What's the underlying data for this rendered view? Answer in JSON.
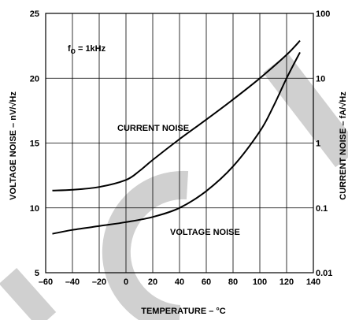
{
  "chart_data": {
    "type": "line",
    "xlabel": "TEMPERATURE – °C",
    "ylabel_left": "VOLTAGE NOISE – nV/√Hz",
    "ylabel_right": "CURRENT NOISE – fA/√Hz",
    "xlim": [
      -60,
      140
    ],
    "ylim_left": [
      5,
      25
    ],
    "ylim_right": [
      0.01,
      100
    ],
    "right_scale": "log",
    "grid": true,
    "x_ticks": [
      "–60",
      "–40",
      "–20",
      "0",
      "20",
      "40",
      "60",
      "80",
      "100",
      "120",
      "140"
    ],
    "y_ticks_left": [
      "5",
      "10",
      "15",
      "20",
      "25"
    ],
    "y_ticks_right": [
      "0.01",
      "0.1",
      "1",
      "10",
      "100"
    ],
    "annotation": {
      "main": "f",
      "sub": "O",
      "rest": " = 1kHz"
    },
    "series": [
      {
        "name": "CURRENT NOISE",
        "x": [
          -55,
          -40,
          -20,
          0,
          10,
          20,
          40,
          60,
          80,
          100,
          120,
          130
        ],
        "y": [
          0.185,
          0.19,
          0.21,
          0.27,
          0.37,
          0.55,
          1.15,
          2.3,
          4.7,
          10,
          23,
          38
        ]
      },
      {
        "name": "VOLTAGE NOISE",
        "x": [
          -55,
          -40,
          -20,
          0,
          20,
          40,
          60,
          80,
          100,
          110,
          120,
          130
        ],
        "y": [
          8.0,
          8.3,
          8.6,
          8.9,
          9.3,
          10.0,
          11.3,
          13.2,
          15.9,
          17.8,
          20.0,
          22.0
        ]
      }
    ],
    "series_labels": [
      "CURRENT NOISE",
      "VOLTAGE NOISE"
    ]
  },
  "watermark_text": "OBSOLETE"
}
